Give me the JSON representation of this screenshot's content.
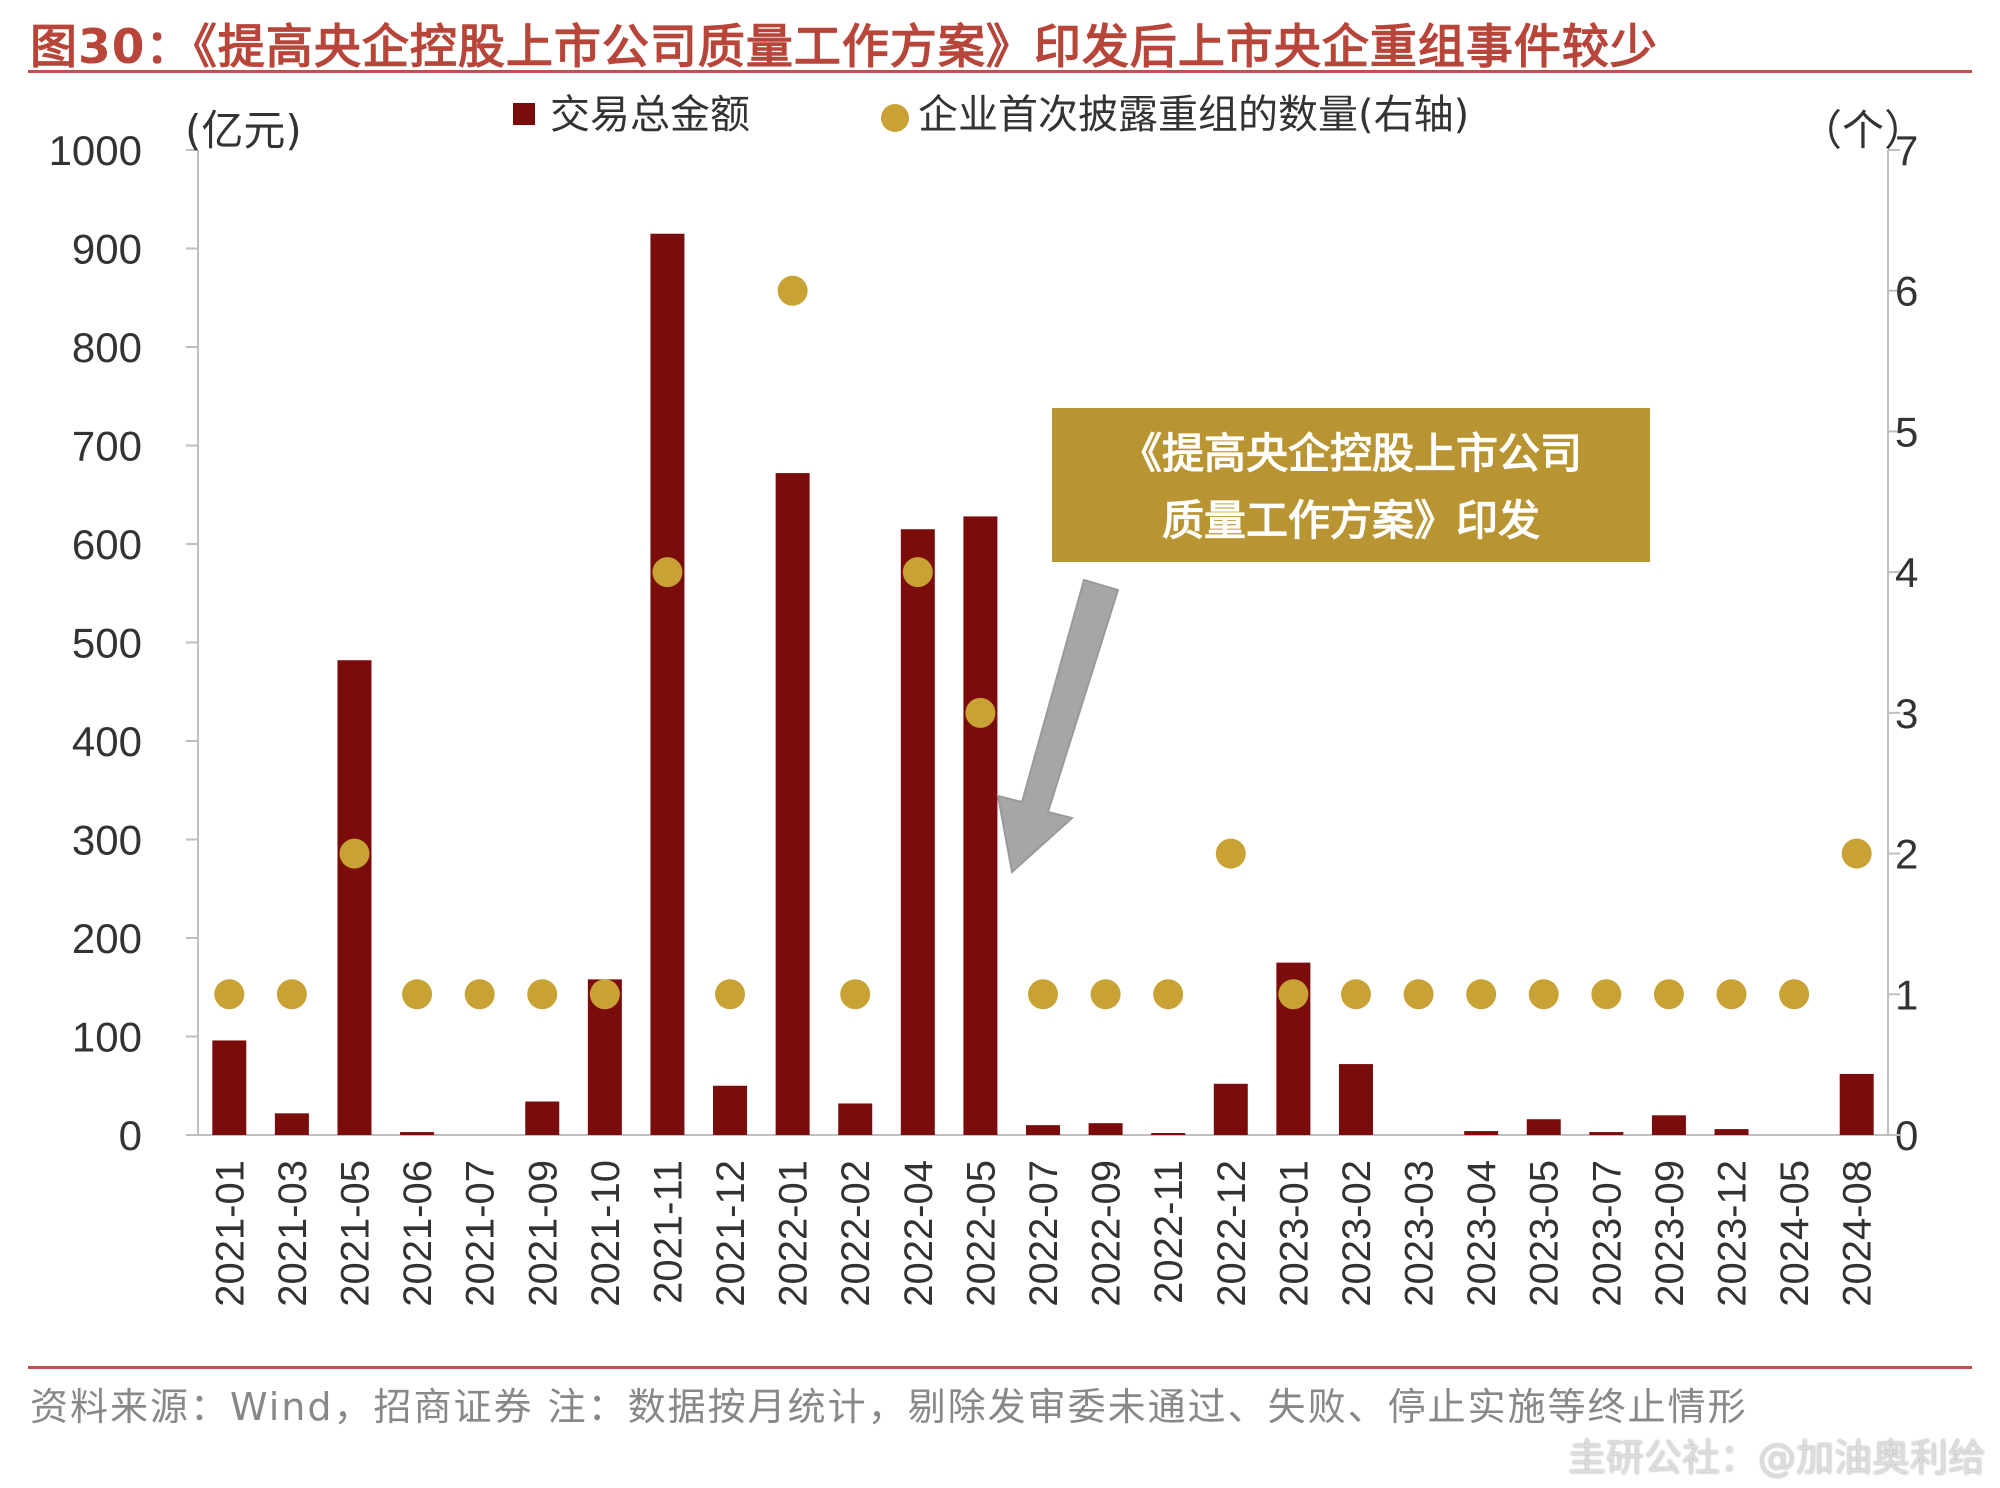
{
  "title": "图30：《提高央企控股上市公司质量工作方案》印发后上市央企重组事件较少",
  "source": "资料来源：Wind，招商证券  注：数据按月统计，剔除发审委未通过、失败、停止实施等终止情形",
  "watermark": "圭研公社：@加油奥利给",
  "colors": {
    "bar": "#7b0c0c",
    "dot": "#c8a234",
    "annotation_bg": "#b99432",
    "arrow": "#a6a6a6",
    "title": "#b8453a"
  },
  "chart_data": {
    "type": "bar",
    "left_axis_unit": "(亿元)",
    "right_axis_unit": "（个）",
    "ylim": [
      0,
      1000
    ],
    "y2lim": [
      0,
      7
    ],
    "yticks": [
      "0",
      "100",
      "200",
      "300",
      "400",
      "500",
      "600",
      "700",
      "800",
      "900",
      "1000"
    ],
    "y2ticks": [
      "0",
      "1",
      "2",
      "3",
      "4",
      "5",
      "6",
      "7"
    ],
    "categories": [
      "2021-01",
      "2021-03",
      "2021-05",
      "2021-06",
      "2021-07",
      "2021-09",
      "2021-10",
      "2021-11",
      "2021-12",
      "2022-01",
      "2022-02",
      "2022-04",
      "2022-05",
      "2022-07",
      "2022-09",
      "2022-11",
      "2022-12",
      "2023-01",
      "2023-02",
      "2023-03",
      "2023-04",
      "2023-05",
      "2023-07",
      "2023-09",
      "2023-12",
      "2024-05",
      "2024-08"
    ],
    "series": [
      {
        "name": "交易总金额",
        "type": "bar",
        "axis": "left",
        "values": [
          96,
          22,
          482,
          3,
          0,
          34,
          158,
          915,
          50,
          672,
          32,
          615,
          628,
          10,
          12,
          2,
          52,
          175,
          72,
          0,
          4,
          16,
          3,
          20,
          6,
          0,
          62
        ]
      },
      {
        "name": "企业首次披露重组的数量(右轴)",
        "type": "scatter",
        "axis": "right",
        "values": [
          1,
          1,
          2,
          1,
          1,
          1,
          1,
          4,
          1,
          6,
          1,
          4,
          3,
          1,
          1,
          1,
          2,
          1,
          1,
          1,
          1,
          1,
          1,
          1,
          1,
          1,
          2
        ]
      }
    ],
    "annotation": {
      "line1": "《提高央企控股上市公司",
      "line2": "质量工作方案》印发",
      "points_to": "2022-05"
    }
  }
}
